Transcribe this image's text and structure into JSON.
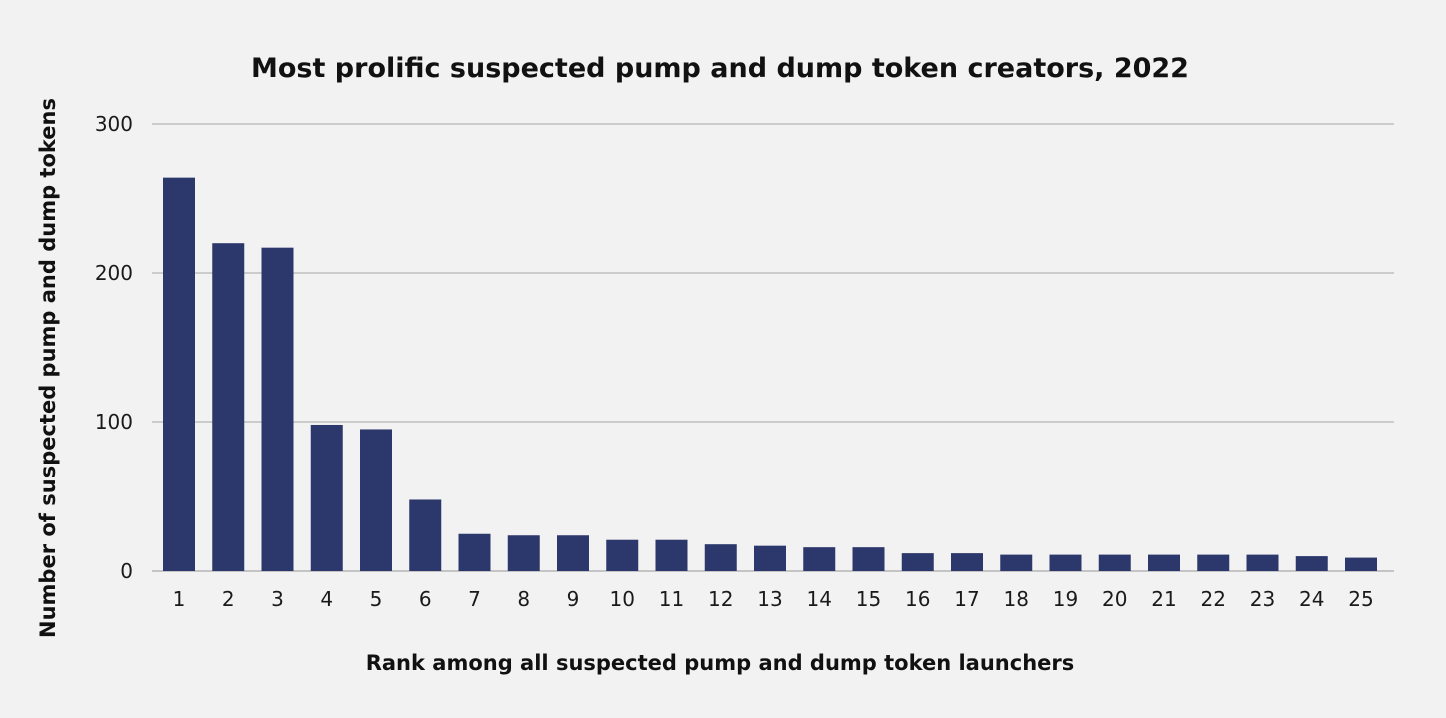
{
  "chart_data": {
    "type": "bar",
    "title": "Most prolific suspected pump and dump token creators, 2022",
    "xlabel": "Rank among all suspected pump and dump token launchers",
    "ylabel": "Number of suspected pump and dump tokens",
    "categories": [
      "1",
      "2",
      "3",
      "4",
      "5",
      "6",
      "7",
      "8",
      "9",
      "10",
      "11",
      "12",
      "13",
      "14",
      "15",
      "16",
      "17",
      "18",
      "19",
      "20",
      "21",
      "22",
      "23",
      "24",
      "25"
    ],
    "values": [
      264,
      220,
      217,
      98,
      95,
      48,
      25,
      24,
      24,
      21,
      21,
      18,
      17,
      16,
      16,
      12,
      12,
      11,
      11,
      11,
      11,
      11,
      11,
      10,
      9
    ],
    "ylim": [
      0,
      300
    ],
    "yticks": [
      0,
      100,
      200,
      300
    ],
    "grid": true,
    "legend": "none",
    "colors": {
      "bar": "#2c386b",
      "background": "#f2f2f2",
      "grid": "#cccccc"
    }
  }
}
